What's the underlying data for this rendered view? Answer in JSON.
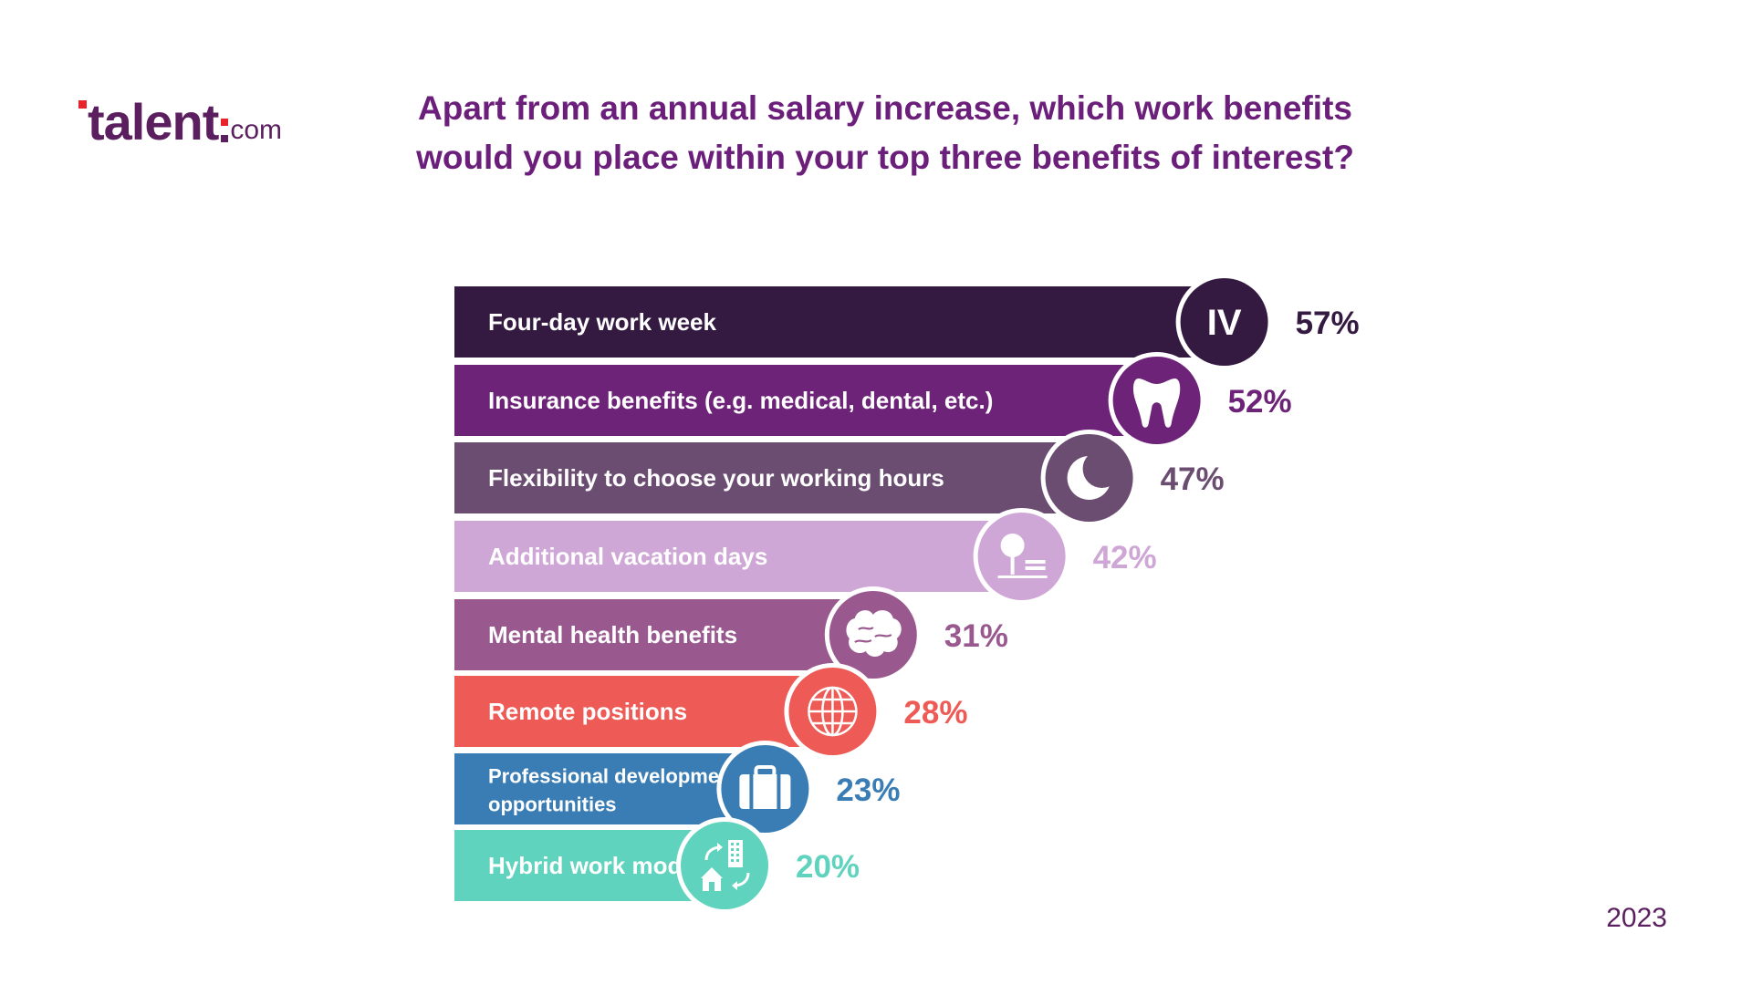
{
  "logo": {
    "main": "talent",
    "suffix": "com"
  },
  "title_lines": [
    "Apart from an annual salary increase, which work benefits",
    "would you place within your top three benefits of interest?"
  ],
  "year": "2023",
  "chart_data": {
    "type": "bar",
    "orientation": "horizontal",
    "title": "Apart from an annual salary increase, which work benefits would you place within your top three benefits of interest?",
    "categories": [
      [
        "Four-day work week"
      ],
      [
        "Insurance benefits (e.g. medical, dental, etc.)"
      ],
      [
        "Flexibility to choose your working hours"
      ],
      [
        "Additional vacation days"
      ],
      [
        "Mental health benefits"
      ],
      [
        "Remote positions"
      ],
      [
        "Professional development",
        "opportunities"
      ],
      [
        "Hybrid work model"
      ]
    ],
    "values": [
      57,
      52,
      47,
      42,
      31,
      28,
      23,
      20
    ],
    "value_labels": [
      "57%",
      "52%",
      "47%",
      "42%",
      "31%",
      "28%",
      "23%",
      "20%"
    ],
    "colors": [
      "#341a40",
      "#6d2378",
      "#6b4d72",
      "#cfa7d6",
      "#99598f",
      "#ee5a55",
      "#3a7db4",
      "#5fd3bd"
    ],
    "icons": [
      "roman-four-icon",
      "tooth-icon",
      "moon-icon",
      "tree-bench-icon",
      "brain-icon",
      "globe-icon",
      "briefcase-icon",
      "home-office-icon"
    ],
    "icon_text": [
      "IV",
      "",
      "",
      "",
      "",
      "",
      "",
      ""
    ],
    "grid": false,
    "legend": "none"
  }
}
